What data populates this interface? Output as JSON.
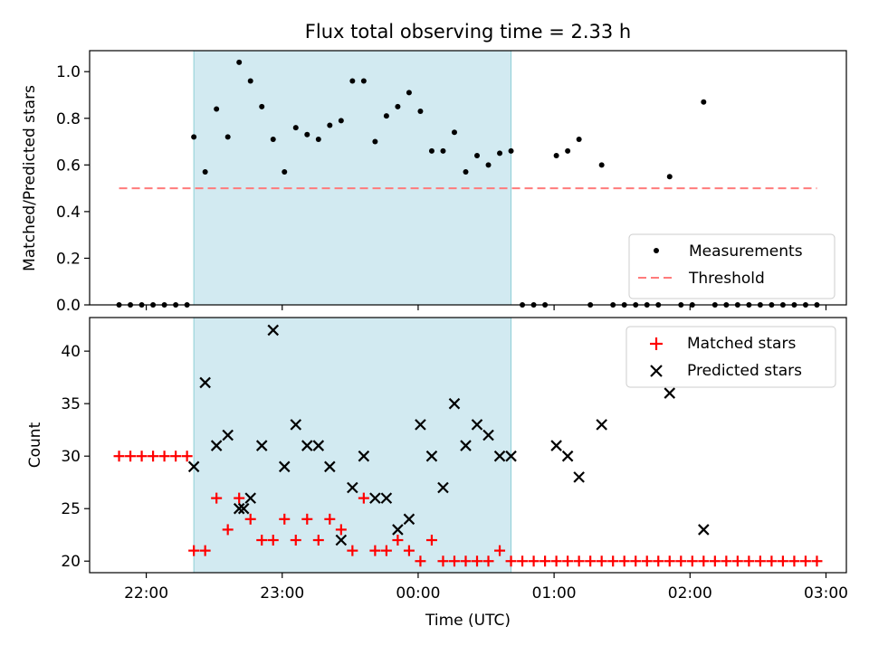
{
  "chart_data": [
    {
      "type": "scatter",
      "title": "Flux total observing time = 2.33 h",
      "xlabel": "",
      "ylabel": "Matched/Predicted stars",
      "ylim": [
        0,
        1.09
      ],
      "xlim": [
        "21:35",
        "03:09"
      ],
      "yticks": [
        0.0,
        0.2,
        0.4,
        0.6,
        0.8,
        1.0
      ],
      "ytick_labels": [
        "0.0",
        "0.2",
        "0.4",
        "0.6",
        "0.8",
        "1.0"
      ],
      "shaded_region": {
        "start": "22:21",
        "end": "00:41",
        "color": "#add8e6"
      },
      "legend_position": "lower-right",
      "series": [
        {
          "name": "Measurements",
          "marker": "dot",
          "color": "#000000",
          "x": [
            "21:48",
            "21:53",
            "21:58",
            "22:03",
            "22:08",
            "22:13",
            "22:18",
            "22:21",
            "22:26",
            "22:31",
            "22:36",
            "22:41",
            "22:46",
            "22:51",
            "22:56",
            "23:01",
            "23:06",
            "23:11",
            "23:16",
            "23:21",
            "23:26",
            "23:31",
            "23:36",
            "23:41",
            "23:46",
            "23:51",
            "23:56",
            "00:01",
            "00:06",
            "00:11",
            "00:16",
            "00:21",
            "00:26",
            "00:31",
            "00:36",
            "00:41",
            "00:46",
            "00:51",
            "00:56",
            "01:01",
            "01:06",
            "01:11",
            "01:16",
            "01:21",
            "01:26",
            "01:31",
            "01:36",
            "01:41",
            "01:46",
            "01:51",
            "01:56",
            "02:01",
            "02:06",
            "02:11",
            "02:16",
            "02:21",
            "02:26",
            "02:31",
            "02:36",
            "02:41",
            "02:46",
            "02:51",
            "02:56"
          ],
          "y": [
            0,
            0,
            0,
            0,
            0,
            0,
            0,
            0.72,
            0.57,
            0.84,
            0.72,
            1.04,
            0.96,
            0.85,
            0.71,
            0.57,
            0.76,
            0.73,
            0.71,
            0.77,
            0.79,
            0.96,
            0.96,
            0.7,
            0.81,
            0.85,
            0.91,
            0.83,
            0.66,
            0.66,
            0.74,
            0.57,
            0.64,
            0.6,
            0.65,
            0.66,
            0,
            0,
            0,
            0.64,
            0.66,
            0.71,
            0,
            0.6,
            0,
            0,
            0,
            0,
            0,
            0.55,
            0,
            0,
            0.87,
            0,
            0,
            0,
            0,
            0,
            0,
            0,
            0,
            0,
            0
          ]
        },
        {
          "name": "Threshold",
          "style": "dashed",
          "color": "#ff7b7b",
          "x": [
            "21:48",
            "02:56"
          ],
          "y": [
            0.5,
            0.5
          ]
        }
      ]
    },
    {
      "type": "scatter",
      "title": "",
      "xlabel": "Time (UTC)",
      "ylabel": "Count",
      "ylim": [
        18.9,
        43.2
      ],
      "xlim": [
        "21:35",
        "03:09"
      ],
      "yticks": [
        20,
        25,
        30,
        35,
        40
      ],
      "ytick_labels": [
        "20",
        "25",
        "30",
        "35",
        "40"
      ],
      "xticks": [
        "22:00",
        "23:00",
        "00:00",
        "01:00",
        "02:00",
        "03:00"
      ],
      "xtick_labels": [
        "22:00",
        "23:00",
        "00:00",
        "01:00",
        "02:00",
        "03:00"
      ],
      "shaded_region": {
        "start": "22:21",
        "end": "00:41",
        "color": "#add8e6"
      },
      "legend_position": "upper-right",
      "series": [
        {
          "name": "Matched stars",
          "marker": "plus",
          "color": "#ff0000",
          "x": [
            "21:48",
            "21:53",
            "21:58",
            "22:03",
            "22:08",
            "22:13",
            "22:18",
            "22:21",
            "22:26",
            "22:31",
            "22:36",
            "22:41",
            "22:46",
            "22:51",
            "22:56",
            "23:01",
            "23:06",
            "23:11",
            "23:16",
            "23:21",
            "23:26",
            "23:31",
            "23:36",
            "23:41",
            "23:46",
            "23:51",
            "23:56",
            "00:01",
            "00:06",
            "00:11",
            "00:16",
            "00:21",
            "00:26",
            "00:31",
            "00:36",
            "00:41",
            "00:46",
            "00:51",
            "00:56",
            "01:01",
            "01:06",
            "01:11",
            "01:16",
            "01:21",
            "01:26",
            "01:31",
            "01:36",
            "01:41",
            "01:46",
            "01:51",
            "01:56",
            "02:01",
            "02:06",
            "02:11",
            "02:16",
            "02:21",
            "02:26",
            "02:31",
            "02:36",
            "02:41",
            "02:46",
            "02:51",
            "02:56"
          ],
          "y": [
            30,
            30,
            30,
            30,
            30,
            30,
            30,
            21,
            21,
            26,
            23,
            26,
            24,
            22,
            22,
            24,
            22,
            24,
            22,
            24,
            23,
            21,
            26,
            21,
            21,
            22,
            21,
            20,
            22,
            20,
            20,
            20,
            20,
            20,
            21,
            20,
            20,
            20,
            20,
            20,
            20,
            20,
            20,
            20,
            20,
            20,
            20,
            20,
            20,
            20,
            20,
            20,
            20,
            20,
            20,
            20,
            20,
            20,
            20,
            20,
            20,
            20,
            20
          ]
        },
        {
          "name": "Predicted stars",
          "marker": "x",
          "color": "#000000",
          "x": [
            "22:21",
            "22:26",
            "22:31",
            "22:36",
            "22:41",
            "22:43",
            "22:46",
            "22:51",
            "22:56",
            "23:01",
            "23:06",
            "23:11",
            "23:16",
            "23:21",
            "23:26",
            "23:31",
            "23:36",
            "23:41",
            "23:46",
            "23:51",
            "23:56",
            "00:01",
            "00:06",
            "00:11",
            "00:16",
            "00:21",
            "00:26",
            "00:31",
            "00:36",
            "00:41",
            "01:01",
            "01:06",
            "01:11",
            "01:21",
            "01:51",
            "02:06"
          ],
          "y": [
            29,
            37,
            31,
            32,
            25,
            25,
            26,
            31,
            42,
            29,
            33,
            31,
            31,
            29,
            22,
            27,
            30,
            26,
            26,
            23,
            24,
            33,
            30,
            27,
            35,
            31,
            33,
            32,
            30,
            30,
            31,
            30,
            28,
            33,
            36,
            23
          ]
        }
      ]
    }
  ]
}
